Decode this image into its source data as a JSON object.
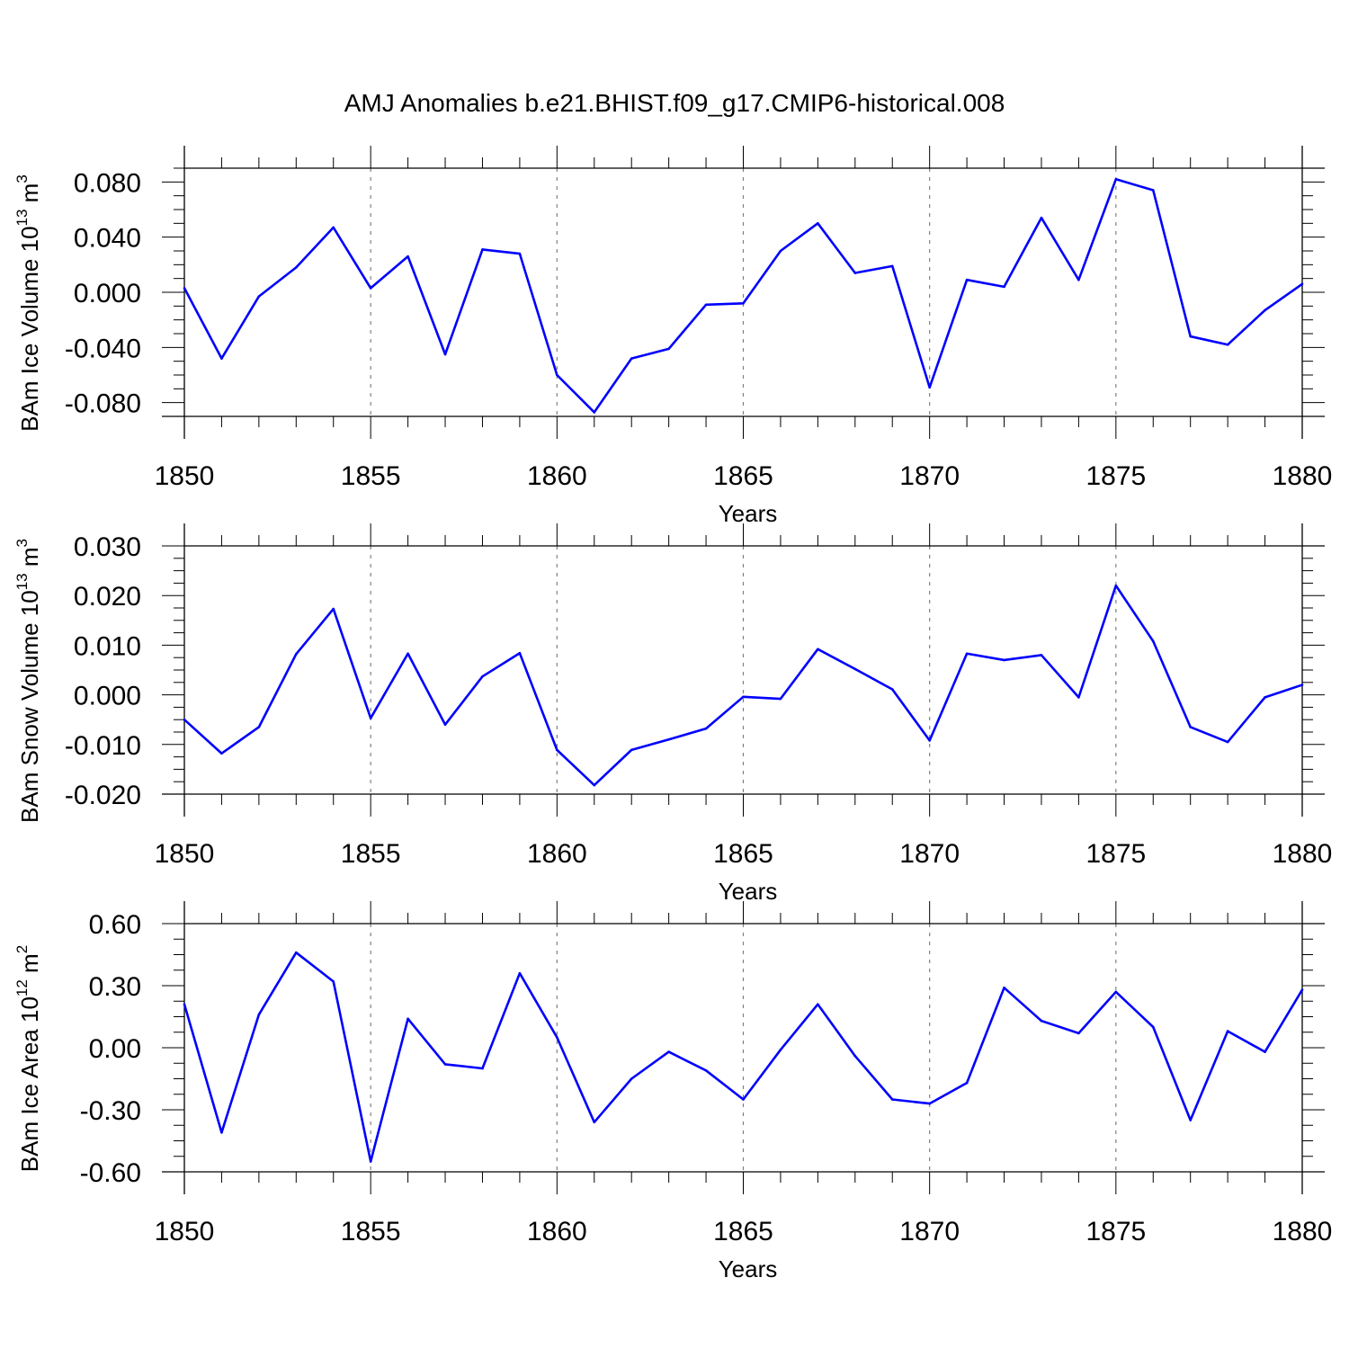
{
  "title": "AMJ Anomalies b.e21.BHIST.f09_g17.CMIP6-historical.008",
  "colors": {
    "line": "#0000ff",
    "axes": "#000000",
    "grid": "#808080"
  },
  "chart_data": [
    {
      "type": "line",
      "xlabel": "Years",
      "ylabel": {
        "prefix": "BAm Ice Volume 10",
        "exponent": "13",
        "unit": " m",
        "unit_exponent": "3"
      },
      "xlim": [
        1850,
        1880
      ],
      "ylim": [
        -0.09,
        0.09
      ],
      "x_ticks": [
        1850,
        1855,
        1860,
        1865,
        1870,
        1875,
        1880
      ],
      "y_ticks": [
        -0.08,
        -0.04,
        0.0,
        0.04,
        0.08
      ],
      "y_tick_labels": [
        "-0.080",
        "-0.040",
        "0.000",
        "0.040",
        "0.080"
      ],
      "vertical_grid": "dashed at major x ticks",
      "x": [
        1850,
        1851,
        1852,
        1853,
        1854,
        1855,
        1856,
        1857,
        1858,
        1859,
        1860,
        1861,
        1862,
        1863,
        1864,
        1865,
        1866,
        1867,
        1868,
        1869,
        1870,
        1871,
        1872,
        1873,
        1874,
        1875,
        1876,
        1877,
        1878,
        1879,
        1880
      ],
      "values": [
        0.003,
        -0.048,
        -0.003,
        0.018,
        0.047,
        0.003,
        0.026,
        -0.045,
        0.031,
        0.028,
        -0.06,
        -0.087,
        -0.048,
        -0.041,
        -0.009,
        -0.008,
        0.03,
        0.05,
        0.014,
        0.019,
        -0.069,
        0.009,
        0.004,
        0.054,
        0.009,
        0.082,
        0.074,
        -0.032,
        -0.038,
        -0.013,
        0.006
      ]
    },
    {
      "type": "line",
      "xlabel": "Years",
      "ylabel": {
        "prefix": "BAm Snow Volume 10",
        "exponent": "13",
        "unit": " m",
        "unit_exponent": "3"
      },
      "xlim": [
        1850,
        1880
      ],
      "ylim": [
        -0.02,
        0.03
      ],
      "x_ticks": [
        1850,
        1855,
        1860,
        1865,
        1870,
        1875,
        1880
      ],
      "y_ticks": [
        -0.02,
        -0.01,
        0.0,
        0.01,
        0.02,
        0.03
      ],
      "y_tick_labels": [
        "-0.020",
        "-0.010",
        "0.000",
        "0.010",
        "0.020",
        "0.030"
      ],
      "vertical_grid": "dashed at major x ticks",
      "x": [
        1850,
        1851,
        1852,
        1853,
        1854,
        1855,
        1856,
        1857,
        1858,
        1859,
        1860,
        1861,
        1862,
        1863,
        1864,
        1865,
        1866,
        1867,
        1868,
        1869,
        1870,
        1871,
        1872,
        1873,
        1874,
        1875,
        1876,
        1877,
        1878,
        1879,
        1880
      ],
      "values": [
        -0.005,
        -0.0118,
        -0.0065,
        0.0082,
        0.0173,
        -0.0047,
        0.0083,
        -0.006,
        0.0037,
        0.0084,
        -0.0111,
        -0.0182,
        -0.0111,
        -0.009,
        -0.0068,
        -0.0004,
        -0.0008,
        0.0092,
        0.0052,
        0.0011,
        -0.0092,
        0.0083,
        0.007,
        0.008,
        -0.0005,
        0.022,
        0.0108,
        -0.0065,
        -0.0095,
        -0.0005,
        0.002
      ]
    },
    {
      "type": "line",
      "xlabel": "Years",
      "ylabel": {
        "prefix": "BAm Ice Area 10",
        "exponent": "12",
        "unit": " m",
        "unit_exponent": "2"
      },
      "xlim": [
        1850,
        1880
      ],
      "ylim": [
        -0.6,
        0.6
      ],
      "x_ticks": [
        1850,
        1855,
        1860,
        1865,
        1870,
        1875,
        1880
      ],
      "y_ticks": [
        -0.6,
        -0.3,
        0.0,
        0.3,
        0.6
      ],
      "y_tick_labels": [
        "-0.60",
        "-0.30",
        "0.00",
        "0.30",
        "0.60"
      ],
      "vertical_grid": "dashed at major x ticks",
      "x": [
        1850,
        1851,
        1852,
        1853,
        1854,
        1855,
        1856,
        1857,
        1858,
        1859,
        1860,
        1861,
        1862,
        1863,
        1864,
        1865,
        1866,
        1867,
        1868,
        1869,
        1870,
        1871,
        1872,
        1873,
        1874,
        1875,
        1876,
        1877,
        1878,
        1879,
        1880
      ],
      "values": [
        0.21,
        -0.41,
        0.16,
        0.46,
        0.32,
        -0.55,
        0.14,
        -0.08,
        -0.1,
        0.36,
        0.05,
        -0.36,
        -0.15,
        -0.02,
        -0.11,
        -0.25,
        -0.01,
        0.21,
        -0.04,
        -0.25,
        -0.27,
        -0.17,
        0.29,
        0.13,
        0.07,
        0.27,
        0.1,
        -0.35,
        0.08,
        -0.02,
        0.28
      ]
    }
  ]
}
